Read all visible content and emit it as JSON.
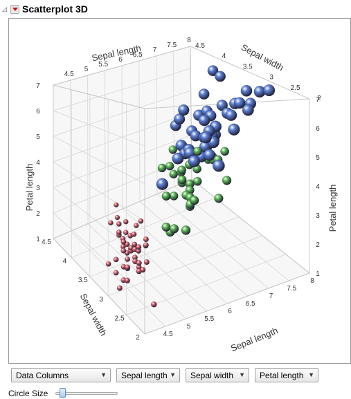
{
  "header": {
    "title": "Scatterplot 3D"
  },
  "controls": {
    "data_columns": "Data Columns",
    "axis_selects": [
      "Sepal length",
      "Sepal width",
      "Petal length"
    ],
    "circle_size_label": "Circle Size",
    "circle_size_level": 0.08
  },
  "chart_data": {
    "type": "scatter3d",
    "axes": {
      "x": {
        "label": "Sepal length",
        "range": [
          4,
          8
        ],
        "ticks": [
          "4.5",
          "5",
          "5.5",
          "6",
          "6.5",
          "7",
          "7.5",
          "8"
        ]
      },
      "y": {
        "label": "Sepal width",
        "range": [
          2,
          4.5
        ],
        "ticks": [
          "2",
          "2.5",
          "3",
          "3.5",
          "4",
          "4.5"
        ]
      },
      "z": {
        "label": "Petal length",
        "range": [
          1,
          7
        ],
        "ticks": [
          "1",
          "2",
          "3",
          "4",
          "5",
          "6",
          "7"
        ]
      }
    },
    "grid": true,
    "series": [
      {
        "color": "#d8606c",
        "size": "small",
        "points": [
          [
            5.1,
            3.5,
            1.4
          ],
          [
            4.9,
            3.0,
            1.4
          ],
          [
            4.7,
            3.2,
            1.3
          ],
          [
            4.6,
            3.1,
            1.5
          ],
          [
            5.0,
            3.6,
            1.4
          ],
          [
            5.4,
            3.9,
            1.7
          ],
          [
            4.6,
            3.4,
            1.4
          ],
          [
            5.0,
            3.4,
            1.5
          ],
          [
            4.4,
            2.9,
            1.4
          ],
          [
            4.9,
            3.1,
            1.5
          ],
          [
            5.4,
            3.7,
            1.5
          ],
          [
            4.8,
            3.4,
            1.6
          ],
          [
            4.8,
            3.0,
            1.4
          ],
          [
            4.3,
            3.0,
            1.1
          ],
          [
            5.8,
            4.0,
            1.2
          ],
          [
            5.7,
            4.4,
            1.5
          ],
          [
            5.4,
            3.9,
            1.3
          ],
          [
            5.1,
            3.5,
            1.4
          ],
          [
            5.7,
            3.8,
            1.7
          ],
          [
            5.1,
            3.8,
            1.5
          ],
          [
            5.4,
            3.4,
            1.7
          ],
          [
            5.1,
            3.7,
            1.5
          ],
          [
            4.6,
            3.6,
            1.0
          ],
          [
            5.1,
            3.3,
            1.7
          ],
          [
            4.8,
            3.4,
            1.9
          ],
          [
            5.0,
            3.0,
            1.6
          ],
          [
            5.0,
            3.4,
            1.6
          ],
          [
            5.2,
            3.5,
            1.5
          ],
          [
            5.2,
            3.4,
            1.4
          ],
          [
            4.7,
            3.2,
            1.6
          ],
          [
            4.8,
            3.1,
            1.6
          ],
          [
            5.4,
            3.4,
            1.5
          ],
          [
            5.2,
            4.1,
            1.5
          ],
          [
            5.5,
            4.2,
            1.4
          ],
          [
            5.0,
            3.2,
            1.2
          ],
          [
            5.5,
            3.5,
            1.3
          ],
          [
            4.4,
            3.0,
            1.3
          ],
          [
            5.1,
            3.4,
            1.5
          ],
          [
            5.0,
            3.5,
            1.3
          ],
          [
            4.5,
            2.3,
            1.3
          ],
          [
            4.4,
            3.2,
            1.3
          ],
          [
            5.0,
            3.5,
            1.6
          ],
          [
            5.1,
            3.8,
            1.9
          ],
          [
            4.8,
            3.0,
            1.4
          ],
          [
            5.1,
            3.8,
            1.6
          ],
          [
            4.6,
            3.2,
            1.4
          ],
          [
            5.3,
            3.7,
            1.5
          ],
          [
            5.0,
            3.3,
            1.4
          ]
        ]
      },
      {
        "color": "#5fba57",
        "size": "medium",
        "points": [
          [
            7.0,
            3.2,
            4.7
          ],
          [
            6.4,
            3.2,
            4.5
          ],
          [
            6.9,
            3.1,
            4.9
          ],
          [
            5.5,
            2.3,
            4.0
          ],
          [
            6.5,
            2.8,
            4.6
          ],
          [
            5.7,
            2.8,
            4.5
          ],
          [
            6.3,
            3.3,
            4.7
          ],
          [
            4.9,
            2.4,
            3.3
          ],
          [
            6.6,
            2.9,
            4.6
          ],
          [
            5.2,
            2.7,
            3.9
          ],
          [
            5.0,
            2.0,
            3.5
          ],
          [
            5.9,
            3.0,
            4.2
          ],
          [
            6.0,
            2.2,
            4.0
          ],
          [
            6.1,
            2.9,
            4.7
          ],
          [
            5.6,
            2.9,
            3.6
          ],
          [
            6.7,
            3.1,
            4.4
          ],
          [
            5.6,
            3.0,
            4.5
          ],
          [
            5.8,
            2.7,
            4.1
          ],
          [
            6.2,
            2.2,
            4.5
          ],
          [
            5.6,
            2.5,
            3.9
          ],
          [
            5.9,
            3.2,
            4.8
          ],
          [
            6.1,
            2.8,
            4.0
          ],
          [
            6.3,
            2.5,
            4.9
          ],
          [
            6.6,
            3.0,
            4.4
          ],
          [
            6.8,
            2.8,
            4.8
          ],
          [
            6.0,
            2.9,
            4.5
          ],
          [
            5.7,
            2.6,
            3.5
          ],
          [
            5.5,
            2.4,
            3.8
          ],
          [
            5.8,
            2.7,
            3.9
          ],
          [
            6.0,
            2.7,
            5.1
          ],
          [
            5.4,
            3.0,
            4.5
          ],
          [
            6.7,
            3.1,
            4.7
          ],
          [
            5.5,
            2.5,
            4.0
          ],
          [
            5.5,
            2.6,
            4.4
          ],
          [
            5.0,
            2.3,
            3.3
          ],
          [
            5.6,
            2.7,
            4.2
          ],
          [
            5.7,
            3.0,
            4.2
          ],
          [
            6.2,
            2.9,
            4.3
          ],
          [
            5.1,
            2.5,
            3.0
          ]
        ]
      },
      {
        "color": "#5b7fd4",
        "size": "large",
        "points": [
          [
            6.3,
            3.3,
            6.0
          ],
          [
            5.8,
            2.7,
            5.1
          ],
          [
            7.1,
            3.0,
            5.9
          ],
          [
            6.5,
            3.0,
            5.8
          ],
          [
            7.6,
            3.0,
            6.6
          ],
          [
            4.9,
            2.5,
            4.5
          ],
          [
            7.3,
            2.9,
            6.3
          ],
          [
            6.7,
            2.5,
            5.8
          ],
          [
            7.2,
            3.6,
            6.1
          ],
          [
            6.5,
            3.2,
            5.1
          ],
          [
            6.4,
            2.7,
            5.3
          ],
          [
            6.8,
            3.0,
            5.5
          ],
          [
            5.7,
            2.5,
            5.0
          ],
          [
            6.4,
            3.2,
            5.3
          ],
          [
            7.7,
            3.8,
            6.7
          ],
          [
            7.7,
            2.6,
            6.9
          ],
          [
            6.0,
            2.2,
            5.0
          ],
          [
            6.9,
            3.2,
            5.7
          ],
          [
            5.6,
            2.8,
            4.9
          ],
          [
            7.7,
            2.8,
            6.7
          ],
          [
            6.3,
            2.7,
            4.9
          ],
          [
            6.7,
            3.3,
            5.7
          ],
          [
            7.2,
            3.2,
            6.0
          ],
          [
            6.2,
            2.8,
            4.8
          ],
          [
            6.1,
            3.0,
            4.9
          ],
          [
            6.4,
            2.8,
            5.6
          ],
          [
            7.2,
            3.0,
            5.8
          ],
          [
            7.4,
            2.8,
            6.1
          ],
          [
            7.9,
            3.8,
            6.4
          ],
          [
            6.3,
            2.8,
            5.1
          ],
          [
            6.1,
            2.6,
            5.6
          ],
          [
            7.7,
            3.0,
            6.1
          ],
          [
            6.3,
            3.4,
            5.6
          ],
          [
            6.0,
            3.0,
            4.8
          ],
          [
            6.9,
            3.1,
            5.4
          ],
          [
            6.9,
            3.1,
            5.1
          ],
          [
            6.8,
            3.2,
            5.9
          ],
          [
            6.7,
            3.0,
            5.2
          ],
          [
            6.5,
            3.0,
            5.2
          ],
          [
            6.2,
            3.4,
            5.4
          ],
          [
            5.9,
            3.0,
            5.1
          ],
          [
            7.3,
            3.0,
            6.2
          ]
        ]
      }
    ]
  }
}
